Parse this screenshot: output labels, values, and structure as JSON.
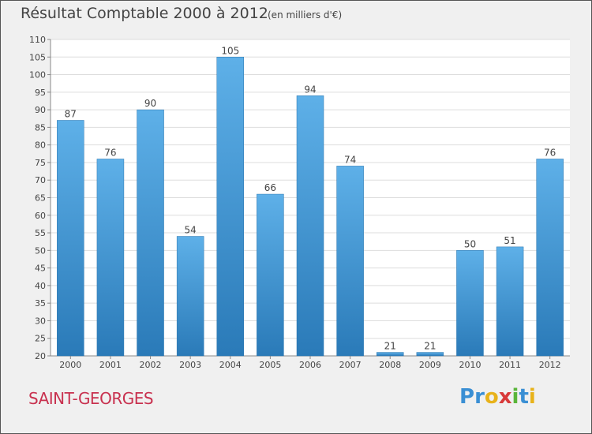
{
  "colors": {
    "bar_light": "#5eb0e8",
    "bar_dark": "#2a7ab8",
    "plot_bg": "#ffffff",
    "grid": "#dddddd",
    "text": "#444444",
    "place": "#c8314f"
  },
  "place_name": "SAINT-GEORGES",
  "logo": {
    "text": "Proxiti",
    "letters": [
      {
        "ch": "P",
        "color": "#3a8fd4"
      },
      {
        "ch": "r",
        "color": "#3a8fd4"
      },
      {
        "ch": "o",
        "color": "#e8b21a"
      },
      {
        "ch": "x",
        "color": "#d83a3a"
      },
      {
        "ch": "i",
        "color": "#5ab53a"
      },
      {
        "ch": "t",
        "color": "#3a8fd4"
      },
      {
        "ch": "i",
        "color": "#e8b21a"
      }
    ]
  },
  "chart_data": {
    "type": "bar",
    "title": "Résultat Comptable 2000 à 2012",
    "subtitle": "(en milliers d'€)",
    "xlabel": "",
    "ylabel": "",
    "categories": [
      "2000",
      "2001",
      "2002",
      "2003",
      "2004",
      "2005",
      "2006",
      "2007",
      "2008",
      "2009",
      "2010",
      "2011",
      "2012"
    ],
    "values": [
      87,
      76,
      90,
      54,
      105,
      66,
      94,
      74,
      21,
      21,
      50,
      51,
      76
    ],
    "value_labels": [
      "87",
      "76",
      "90",
      "54",
      "105",
      "66",
      "94",
      "74",
      "21",
      "21",
      "50",
      "51",
      "76"
    ],
    "ylim": [
      20,
      110
    ],
    "yticks": [
      "20",
      "25",
      "30",
      "35",
      "40",
      "45",
      "50",
      "55",
      "60",
      "65",
      "70",
      "75",
      "80",
      "85",
      "90",
      "95",
      "100",
      "105",
      "110"
    ],
    "grid": true,
    "legend": "none"
  }
}
